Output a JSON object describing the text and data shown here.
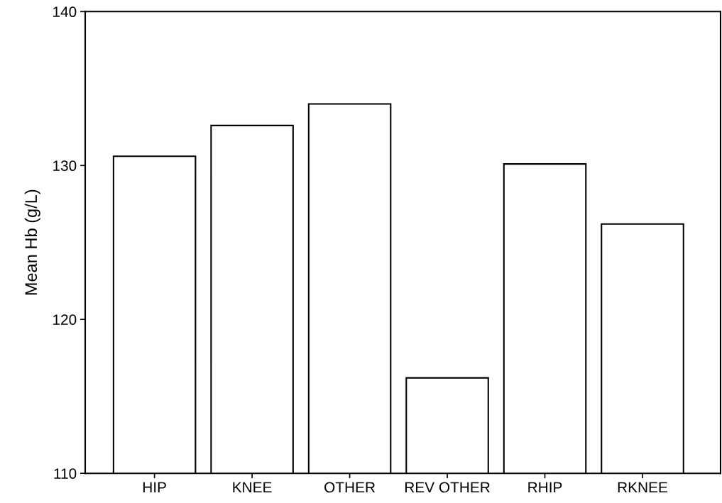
{
  "chart_data": {
    "type": "bar",
    "ylabel": "Mean Hb (g/L)",
    "categories": [
      "HIP",
      "KNEE",
      "OTHER",
      "REV OTHER",
      "RHIP",
      "RKNEE"
    ],
    "values": [
      130.6,
      132.6,
      134.0,
      116.2,
      130.1,
      126.2
    ],
    "color": "#ffffff",
    "ylim": [
      110,
      140
    ],
    "yticks": [
      110,
      120,
      130,
      140
    ],
    "grid": false,
    "legend": false
  }
}
